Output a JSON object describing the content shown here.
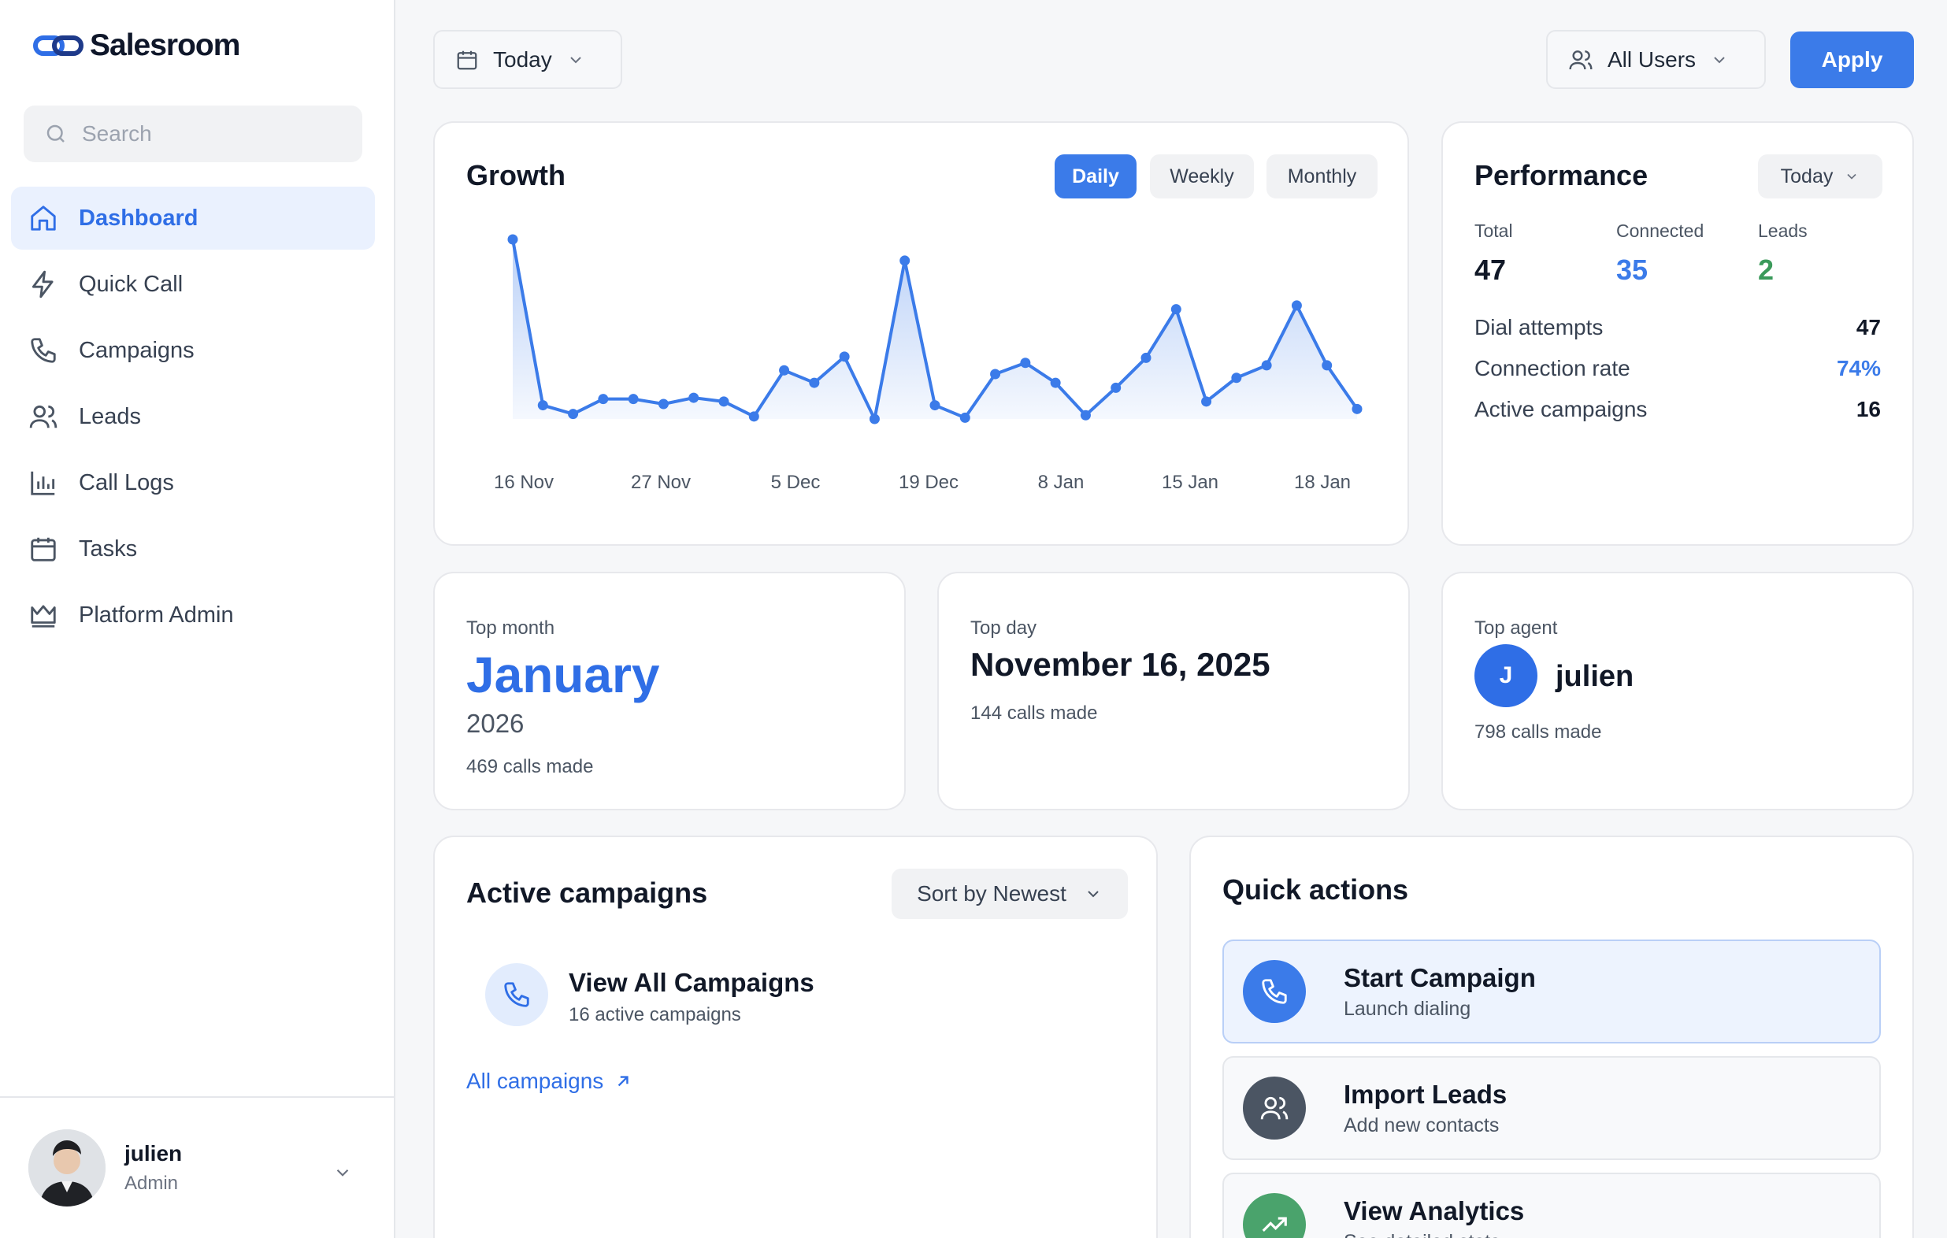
{
  "app": {
    "name": "Salesroom"
  },
  "sidebar": {
    "search_placeholder": "Search",
    "items": [
      {
        "label": "Dashboard",
        "icon": "home-icon",
        "active": true
      },
      {
        "label": "Quick Call",
        "icon": "lightning-icon"
      },
      {
        "label": "Campaigns",
        "icon": "phone-icon"
      },
      {
        "label": "Leads",
        "icon": "users-icon"
      },
      {
        "label": "Call Logs",
        "icon": "bar-chart-icon"
      },
      {
        "label": "Tasks",
        "icon": "calendar-icon"
      },
      {
        "label": "Platform Admin",
        "icon": "crown-icon"
      }
    ],
    "user": {
      "name": "julien",
      "role": "Admin"
    }
  },
  "topbar": {
    "date_filter": "Today",
    "user_filter": "All Users",
    "apply_label": "Apply"
  },
  "growth": {
    "title": "Growth",
    "tabs": [
      "Daily",
      "Weekly",
      "Monthly"
    ],
    "active_tab": "Daily",
    "accent": "#3b7be9"
  },
  "chart_data": {
    "type": "area",
    "title": "Growth",
    "x_ticks": [
      "16 Nov",
      "27 Nov",
      "5 Dec",
      "19 Dec",
      "8 Jan",
      "15 Jan",
      "18 Jan"
    ],
    "y_grid": false,
    "values": [
      144,
      11,
      4,
      16,
      16,
      12,
      17,
      14,
      2,
      39,
      29,
      50,
      0,
      127,
      11,
      1,
      36,
      45,
      29,
      3,
      25,
      49,
      88,
      14,
      33,
      43,
      91,
      43,
      8
    ]
  },
  "performance": {
    "title": "Performance",
    "period": "Today",
    "stats": [
      {
        "label": "Total",
        "value": "47",
        "color": "#111827"
      },
      {
        "label": "Connected",
        "value": "35",
        "color": "#3b7be9"
      },
      {
        "label": "Leads",
        "value": "2",
        "color": "#3b9a5b"
      }
    ],
    "rows": [
      {
        "label": "Dial attempts",
        "value": "47"
      },
      {
        "label": "Connection rate",
        "value": "74%"
      },
      {
        "label": "Active campaigns",
        "value": "16"
      }
    ]
  },
  "top_month": {
    "label": "Top month",
    "month": "January",
    "year": "2026",
    "calls": "469 calls made"
  },
  "top_day": {
    "label": "Top day",
    "date": "November 16, 2025",
    "calls": "144 calls made"
  },
  "top_agent": {
    "label": "Top agent",
    "initial": "J",
    "name": "julien",
    "calls": "798 calls made"
  },
  "active_campaigns": {
    "title": "Active campaigns",
    "sort_label": "Sort by Newest",
    "item_title": "View All Campaigns",
    "item_sub": "16 active campaigns",
    "link_label": "All campaigns"
  },
  "quick_actions": {
    "title": "Quick actions",
    "items": [
      {
        "title": "Start Campaign",
        "sub": "Launch dialing",
        "icon": "phone-icon",
        "color": "#3b7be9"
      },
      {
        "title": "Import Leads",
        "sub": "Add new contacts",
        "icon": "users-icon",
        "color": "#4b5563"
      },
      {
        "title": "View Analytics",
        "sub": "See detailed stats",
        "icon": "trending-up-icon",
        "color": "#4aa36c"
      }
    ]
  }
}
